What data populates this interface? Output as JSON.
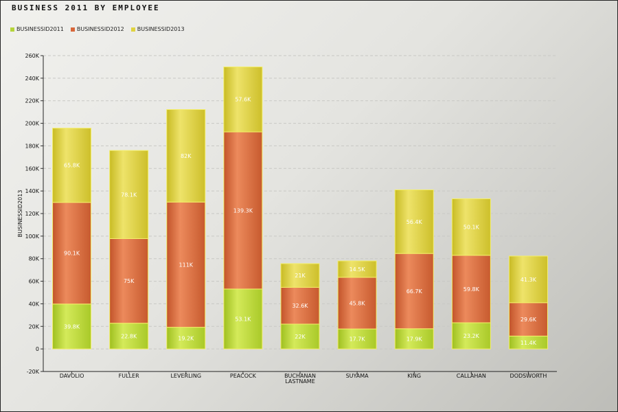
{
  "chart_data": {
    "type": "bar",
    "stacked": true,
    "title": "BUSINESS 2011 BY  EMPLOYEE",
    "ylabel": "BUSINESSID2013",
    "xlabel": "",
    "ylim": [
      -20000,
      260000
    ],
    "yticks": [
      -20000,
      0,
      20000,
      40000,
      60000,
      80000,
      100000,
      120000,
      140000,
      160000,
      180000,
      200000,
      220000,
      240000,
      260000
    ],
    "ytick_labels": [
      "-20K",
      "0",
      "20K",
      "40K",
      "60K",
      "80K",
      "100K",
      "120K",
      "140K",
      "160K",
      "180K",
      "200K",
      "220K",
      "240K",
      "260K"
    ],
    "categories": [
      "DAVOLIO",
      "FULLER",
      "LEVERLING",
      "PEACOCK",
      "BUCHANAN LASTNAME",
      "SUYAMA",
      "KING",
      "CALLAHAN",
      "DODSWORTH"
    ],
    "series": [
      {
        "name": "BUSINESSID2011",
        "color": "#b5d43a",
        "values": [
          39800,
          22800,
          19200,
          53100,
          22000,
          17700,
          17900,
          23200,
          11400
        ],
        "labels": [
          "39.8K",
          "22.8K",
          "19.2K",
          "53.1K",
          "22K",
          "17.7K",
          "17.9K",
          "23.2K",
          "11.4K"
        ]
      },
      {
        "name": "BUSINESSID2012",
        "color": "#d8673a",
        "values": [
          90100,
          75000,
          111000,
          139300,
          32600,
          45800,
          66700,
          59800,
          29600
        ],
        "labels": [
          "90.1K",
          "75K",
          "111K",
          "139.3K",
          "32.6K",
          "45.8K",
          "66.7K",
          "59.8K",
          "29.6K"
        ]
      },
      {
        "name": "BUSINESSID2013",
        "color": "#e0d340",
        "values": [
          65800,
          78100,
          82000,
          57600,
          21000,
          14500,
          56400,
          50100,
          41300
        ],
        "labels": [
          "65.8K",
          "78.1K",
          "82K",
          "57.6K",
          "21K",
          "14.5K",
          "56.4K",
          "50.1K",
          "41.3K"
        ]
      }
    ],
    "grid": true,
    "legend_position": "top-left"
  }
}
